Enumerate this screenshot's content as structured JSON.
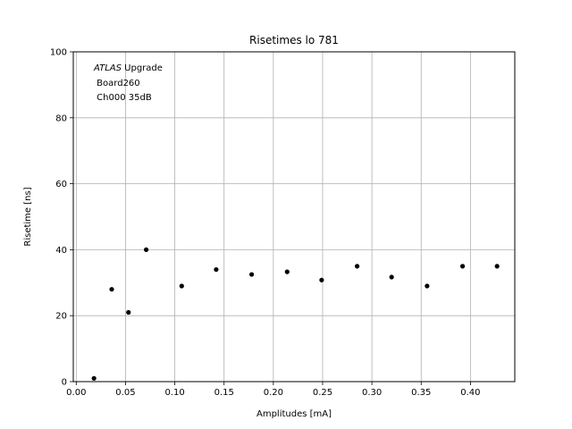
{
  "chart_data": {
    "type": "scatter",
    "title": "Risetimes lo 781",
    "xlabel": "Amplitudes [mA]",
    "ylabel": "Risetime [ns]",
    "xlim": [
      -0.003,
      0.445
    ],
    "ylim": [
      0,
      100
    ],
    "xticks": [
      0.0,
      0.05,
      0.1,
      0.15,
      0.2,
      0.25,
      0.3,
      0.35,
      0.4
    ],
    "xtick_labels": [
      "0.00",
      "0.05",
      "0.10",
      "0.15",
      "0.20",
      "0.25",
      "0.30",
      "0.35",
      "0.40"
    ],
    "yticks": [
      0,
      20,
      40,
      60,
      80,
      100
    ],
    "ytick_labels": [
      "0",
      "20",
      "40",
      "60",
      "80",
      "100"
    ],
    "grid": true,
    "marker_color": "#000000",
    "grid_color": "#b0b0b0",
    "annotation": {
      "line1_italic": "ATLAS",
      "line1_rest": " Upgrade",
      "line2": " Board260",
      "line3": " Ch000 35dB"
    },
    "points": [
      {
        "x": 0.018,
        "y": 1.0
      },
      {
        "x": 0.036,
        "y": 28.0
      },
      {
        "x": 0.053,
        "y": 21.0
      },
      {
        "x": 0.071,
        "y": 40.0
      },
      {
        "x": 0.107,
        "y": 29.0
      },
      {
        "x": 0.142,
        "y": 34.0
      },
      {
        "x": 0.178,
        "y": 32.5
      },
      {
        "x": 0.214,
        "y": 33.3
      },
      {
        "x": 0.249,
        "y": 30.8
      },
      {
        "x": 0.285,
        "y": 35.0
      },
      {
        "x": 0.32,
        "y": 31.7
      },
      {
        "x": 0.356,
        "y": 29.0
      },
      {
        "x": 0.392,
        "y": 35.0
      },
      {
        "x": 0.427,
        "y": 35.0
      }
    ]
  }
}
